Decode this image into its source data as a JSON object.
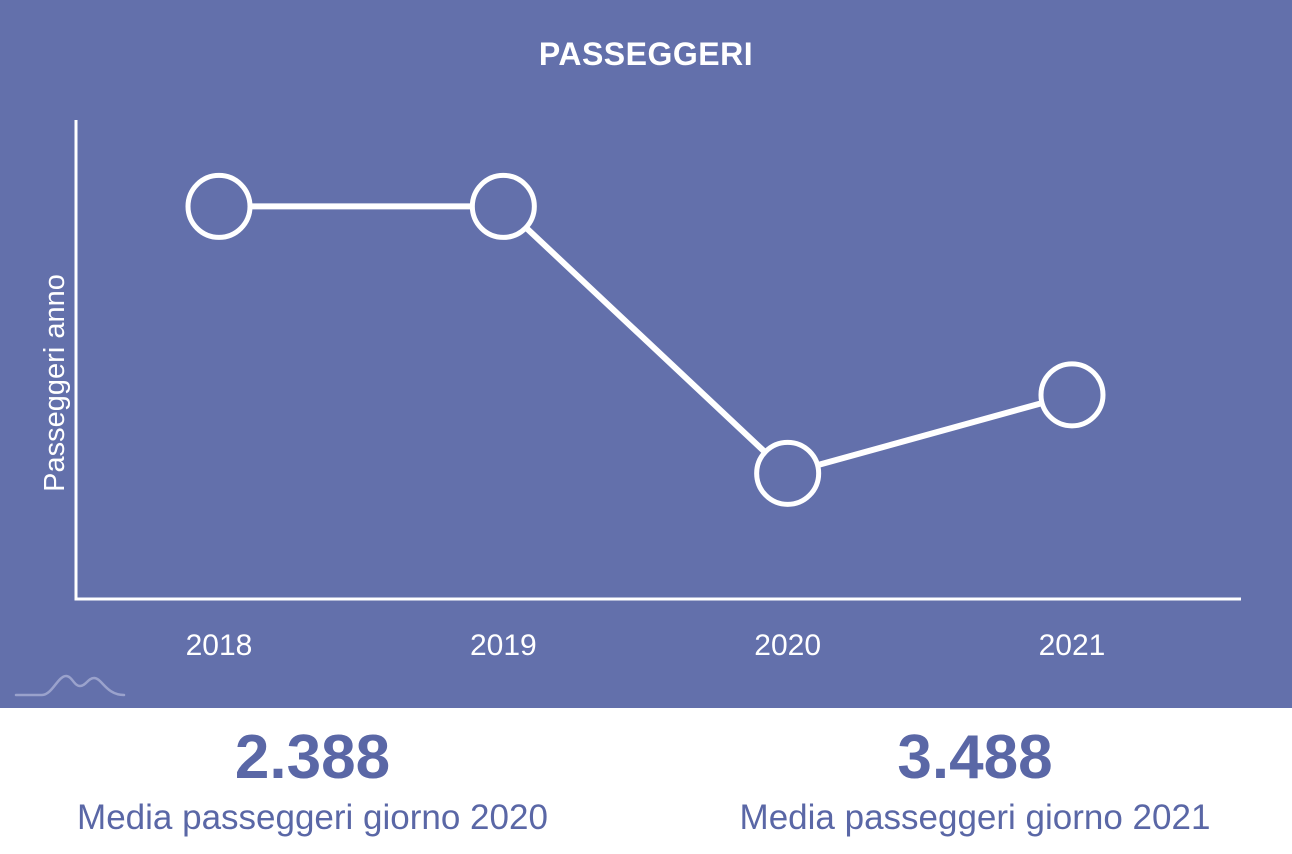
{
  "chart_data": {
    "type": "line",
    "title": "PASSEGGERI",
    "xlabel": "",
    "ylabel": "Passeggeri anno",
    "categories": [
      "2018",
      "2019",
      "2020",
      "2021"
    ],
    "values": [
      1.0,
      1.0,
      0.32,
      0.52
    ],
    "ylim": [
      0,
      1.22
    ],
    "grid": false,
    "legend": "none",
    "colors": {
      "background": "#6370ab",
      "line": "#ffffff"
    }
  },
  "stats": [
    {
      "value": "2.388",
      "caption": "Media passeggeri giorno 2020"
    },
    {
      "value": "3.488",
      "caption": "Media passeggeri giorno 2021"
    }
  ],
  "logo": {
    "icon": "mountain-logo-icon",
    "color": "#9aa2cc"
  },
  "text_color": "#5a67a6"
}
